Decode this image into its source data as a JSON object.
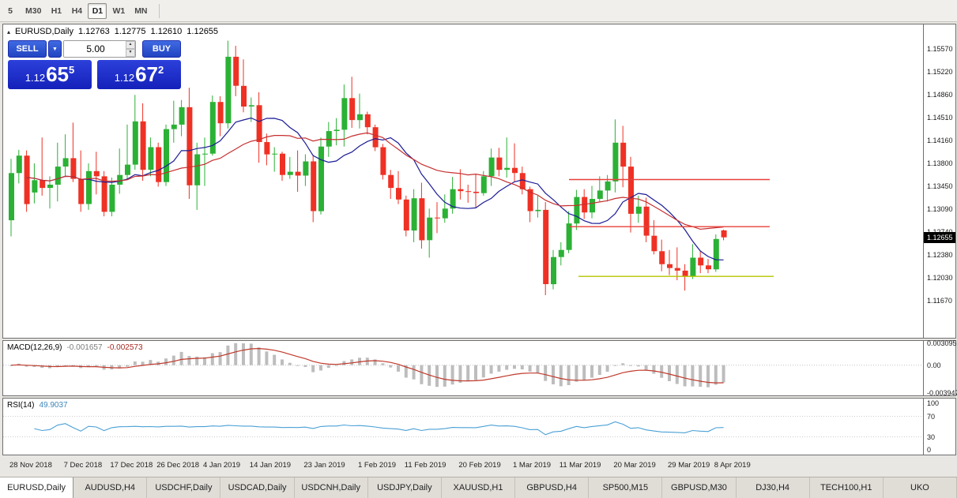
{
  "icons": {
    "shift_arrow": "▴",
    "dropdown": "▼",
    "spin_up": "▲",
    "spin_down": "▼"
  },
  "toolbar": {
    "periods": [
      {
        "label": "5",
        "active": false
      },
      {
        "label": "M30",
        "active": false
      },
      {
        "label": "H1",
        "active": false
      },
      {
        "label": "H4",
        "active": false
      },
      {
        "label": "D1",
        "active": true
      },
      {
        "label": "W1",
        "active": false
      },
      {
        "label": "MN",
        "active": false
      }
    ]
  },
  "chart": {
    "symbol_period": "EURUSD,Daily",
    "open": "1.12763",
    "high": "1.12775",
    "low": "1.12610",
    "close": "1.12655"
  },
  "trade": {
    "sell_label": "SELL",
    "buy_label": "BUY",
    "volume": "5.00",
    "sell_price": {
      "base": "1.12",
      "big": "65",
      "sup": "5"
    },
    "buy_price": {
      "base": "1.12",
      "big": "67",
      "sup": "2"
    }
  },
  "price_axis": {
    "labels": [
      "1.15570",
      "1.15220",
      "1.14860",
      "1.14510",
      "1.14160",
      "1.13800",
      "1.13450",
      "1.13090",
      "1.12740",
      "1.12380",
      "1.12030",
      "1.11670"
    ],
    "current": "1.12655"
  },
  "macd": {
    "label": "MACD(12,26,9)",
    "value1": "-0.001657",
    "value2": "-0.002573",
    "axis": [
      "0.003095",
      "0.00",
      "-0.003947"
    ]
  },
  "rsi": {
    "label": "RSI(14)",
    "value": "49.9037",
    "axis": [
      "100",
      "70",
      "30",
      "0"
    ]
  },
  "tabs": [
    {
      "label": "EURUSD,Daily",
      "active": true
    },
    {
      "label": "AUDUSD,H4",
      "active": false
    },
    {
      "label": "USDCHF,Daily",
      "active": false
    },
    {
      "label": "USDCAD,Daily",
      "active": false
    },
    {
      "label": "USDCNH,Daily",
      "active": false
    },
    {
      "label": "USDJPY,Daily",
      "active": false
    },
    {
      "label": "XAUUSD,H1",
      "active": false
    },
    {
      "label": "GBPUSD,H4",
      "active": false
    },
    {
      "label": "SP500,M15",
      "active": false
    },
    {
      "label": "GBPUSD,M30",
      "active": false
    },
    {
      "label": "DJ30,H4",
      "active": false
    },
    {
      "label": "TECH100,H1",
      "active": false
    },
    {
      "label": "UKO",
      "active": false
    }
  ],
  "chart_data": {
    "type": "candlestick",
    "symbol": "EURUSD",
    "timeframe": "Daily",
    "y_min": 1.111,
    "y_max": 1.1595,
    "ma_fast": 10,
    "ma_slow": 21,
    "colors": {
      "up": "#2bb135",
      "down": "#ee3124",
      "ma_fast": "#1c1c96",
      "ma_slow": "#c62f2f",
      "hist": "#bdbdbd",
      "signal": "#c0392b",
      "rsi": "#4aa0d5"
    },
    "hlines": [
      {
        "price": 1.1355,
        "x1": 0.615,
        "x2": 0.833,
        "color": "#e8403a"
      },
      {
        "price": 1.1282,
        "x1": 0.615,
        "x2": 0.833,
        "color": "#e8403a"
      },
      {
        "price": 1.1205,
        "x1": 0.625,
        "x2": 0.838,
        "color": "#b6c400"
      }
    ],
    "date_ticks": [
      {
        "i": 0,
        "label": "28 Nov 2018"
      },
      {
        "i": 7,
        "label": "7 Dec 2018"
      },
      {
        "i": 13,
        "label": "17 Dec 2018"
      },
      {
        "i": 19,
        "label": "26 Dec 2018"
      },
      {
        "i": 25,
        "label": "4 Jan 2019"
      },
      {
        "i": 31,
        "label": "14 Jan 2019"
      },
      {
        "i": 38,
        "label": "23 Jan 2019"
      },
      {
        "i": 45,
        "label": "1 Feb 2019"
      },
      {
        "i": 51,
        "label": "11 Feb 2019"
      },
      {
        "i": 58,
        "label": "20 Feb 2019"
      },
      {
        "i": 65,
        "label": "1 Mar 2019"
      },
      {
        "i": 71,
        "label": "11 Mar 2019"
      },
      {
        "i": 78,
        "label": "20 Mar 2019"
      },
      {
        "i": 85,
        "label": "29 Mar 2019"
      },
      {
        "i": 91,
        "label": "8 Apr 2019"
      }
    ],
    "candles": [
      [
        1.1292,
        1.1387,
        1.1267,
        1.1365
      ],
      [
        1.1365,
        1.1401,
        1.1349,
        1.1392
      ],
      [
        1.1392,
        1.14,
        1.1305,
        1.1317
      ],
      [
        1.1335,
        1.138,
        1.1318,
        1.1354
      ],
      [
        1.1354,
        1.142,
        1.133,
        1.1342
      ],
      [
        1.1342,
        1.136,
        1.131,
        1.1347
      ],
      [
        1.1347,
        1.1412,
        1.1321,
        1.1375
      ],
      [
        1.1375,
        1.1425,
        1.136,
        1.1388
      ],
      [
        1.1388,
        1.1443,
        1.1351,
        1.1356
      ],
      [
        1.1356,
        1.14,
        1.1305,
        1.1317
      ],
      [
        1.1317,
        1.138,
        1.1308,
        1.1368
      ],
      [
        1.1368,
        1.1398,
        1.1332,
        1.136
      ],
      [
        1.136,
        1.1368,
        1.1298,
        1.1305
      ],
      [
        1.1305,
        1.1358,
        1.1298,
        1.1347
      ],
      [
        1.1347,
        1.1403,
        1.1333,
        1.1362
      ],
      [
        1.1362,
        1.144,
        1.1355,
        1.1378
      ],
      [
        1.1378,
        1.1486,
        1.137,
        1.1445
      ],
      [
        1.1445,
        1.1473,
        1.1353,
        1.137
      ],
      [
        1.137,
        1.142,
        1.136,
        1.1405
      ],
      [
        1.1405,
        1.1412,
        1.1344,
        1.1351
      ],
      [
        1.1351,
        1.144,
        1.1345,
        1.1433
      ],
      [
        1.1433,
        1.1477,
        1.1412,
        1.144
      ],
      [
        1.144,
        1.1478,
        1.1422,
        1.1467
      ],
      [
        1.1467,
        1.1497,
        1.1325,
        1.1346
      ],
      [
        1.1346,
        1.1412,
        1.1308,
        1.1394
      ],
      [
        1.1394,
        1.142,
        1.1345,
        1.1395
      ],
      [
        1.1395,
        1.1485,
        1.1392,
        1.1475
      ],
      [
        1.1475,
        1.1484,
        1.1422,
        1.1442
      ],
      [
        1.1442,
        1.157,
        1.1434,
        1.1545
      ],
      [
        1.1545,
        1.1562,
        1.1484,
        1.15
      ],
      [
        1.15,
        1.1541,
        1.1459,
        1.1468
      ],
      [
        1.1468,
        1.1482,
        1.1444,
        1.147
      ],
      [
        1.147,
        1.149,
        1.1381,
        1.1413
      ],
      [
        1.1413,
        1.1426,
        1.1377,
        1.1394
      ],
      [
        1.1394,
        1.1405,
        1.1367,
        1.1395
      ],
      [
        1.1395,
        1.1398,
        1.1353,
        1.1362
      ],
      [
        1.1362,
        1.139,
        1.1356,
        1.1367
      ],
      [
        1.1367,
        1.14,
        1.1336,
        1.1361
      ],
      [
        1.1361,
        1.1394,
        1.1345,
        1.1383
      ],
      [
        1.1383,
        1.1393,
        1.1289,
        1.1306
      ],
      [
        1.1306,
        1.142,
        1.1301,
        1.1406
      ],
      [
        1.1406,
        1.1444,
        1.139,
        1.143
      ],
      [
        1.143,
        1.145,
        1.1408,
        1.1432
      ],
      [
        1.1432,
        1.1502,
        1.1406,
        1.1481
      ],
      [
        1.1481,
        1.1514,
        1.1435,
        1.1447
      ],
      [
        1.1447,
        1.1488,
        1.1434,
        1.1456
      ],
      [
        1.1456,
        1.146,
        1.1425,
        1.1436
      ],
      [
        1.1436,
        1.144,
        1.1399,
        1.1405
      ],
      [
        1.1405,
        1.141,
        1.1355,
        1.1362
      ],
      [
        1.1362,
        1.137,
        1.1325,
        1.1342
      ],
      [
        1.1342,
        1.1368,
        1.1317,
        1.1324
      ],
      [
        1.1324,
        1.133,
        1.1267,
        1.1276
      ],
      [
        1.1276,
        1.134,
        1.1258,
        1.1326
      ],
      [
        1.1326,
        1.135,
        1.1248,
        1.1261
      ],
      [
        1.1261,
        1.131,
        1.1234,
        1.1296
      ],
      [
        1.1296,
        1.132,
        1.1272,
        1.1295
      ],
      [
        1.1295,
        1.1332,
        1.1288,
        1.131
      ],
      [
        1.131,
        1.1359,
        1.1302,
        1.134
      ],
      [
        1.134,
        1.1371,
        1.1324,
        1.1337
      ],
      [
        1.1337,
        1.1347,
        1.1319,
        1.1336
      ],
      [
        1.1336,
        1.1363,
        1.1312,
        1.1334
      ],
      [
        1.1334,
        1.1368,
        1.133,
        1.136
      ],
      [
        1.136,
        1.1403,
        1.1345,
        1.1389
      ],
      [
        1.1389,
        1.1404,
        1.136,
        1.137
      ],
      [
        1.137,
        1.142,
        1.1358,
        1.1373
      ],
      [
        1.1373,
        1.1411,
        1.1352,
        1.1365
      ],
      [
        1.1365,
        1.1375,
        1.1332,
        1.134
      ],
      [
        1.134,
        1.1344,
        1.1289,
        1.1306
      ],
      [
        1.1306,
        1.133,
        1.1296,
        1.1308
      ],
      [
        1.1308,
        1.132,
        1.1176,
        1.1193
      ],
      [
        1.1193,
        1.1246,
        1.1185,
        1.1235
      ],
      [
        1.1235,
        1.1258,
        1.1222,
        1.1246
      ],
      [
        1.1246,
        1.1306,
        1.1241,
        1.1287
      ],
      [
        1.1287,
        1.1339,
        1.1277,
        1.1328
      ],
      [
        1.1328,
        1.134,
        1.1294,
        1.1304
      ],
      [
        1.1304,
        1.1345,
        1.1295,
        1.1325
      ],
      [
        1.1325,
        1.136,
        1.1321,
        1.1338
      ],
      [
        1.1338,
        1.1362,
        1.1321,
        1.1352
      ],
      [
        1.1352,
        1.1448,
        1.1335,
        1.1412
      ],
      [
        1.1412,
        1.1438,
        1.1343,
        1.1375
      ],
      [
        1.1375,
        1.139,
        1.1273,
        1.1302
      ],
      [
        1.1302,
        1.133,
        1.1288,
        1.1313
      ],
      [
        1.1313,
        1.1327,
        1.1258,
        1.1268
      ],
      [
        1.1268,
        1.1292,
        1.1239,
        1.1244
      ],
      [
        1.1244,
        1.1262,
        1.1213,
        1.1224
      ],
      [
        1.1224,
        1.1246,
        1.1207,
        1.1218
      ],
      [
        1.1218,
        1.125,
        1.1199,
        1.1214
      ],
      [
        1.1214,
        1.1224,
        1.1183,
        1.1205
      ],
      [
        1.1205,
        1.1255,
        1.1201,
        1.1234
      ],
      [
        1.1234,
        1.1244,
        1.121,
        1.1222
      ],
      [
        1.1222,
        1.1232,
        1.121,
        1.1216
      ],
      [
        1.1216,
        1.127,
        1.1212,
        1.1263
      ],
      [
        1.12763,
        1.12775,
        1.1261,
        1.12655
      ]
    ]
  }
}
